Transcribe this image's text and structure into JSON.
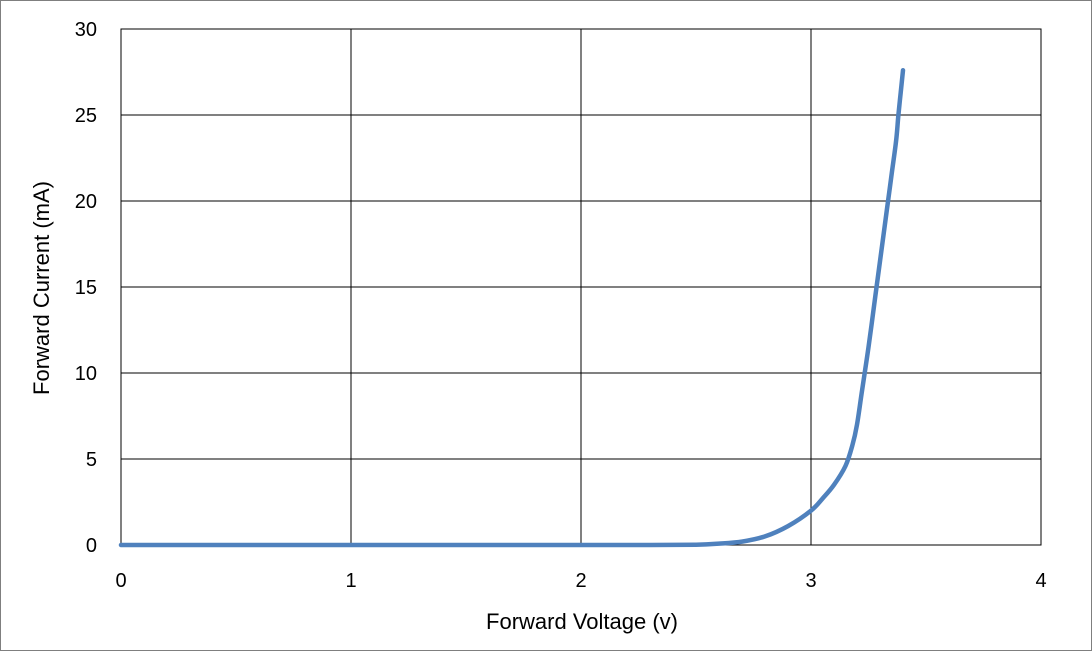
{
  "chart_data": {
    "type": "line",
    "title": "",
    "xlabel": "Forward Voltage (v)",
    "ylabel": "Forward Current (mA)",
    "xlim": [
      0,
      4
    ],
    "ylim": [
      0,
      30
    ],
    "x_ticks": [
      0,
      1,
      2,
      3,
      4
    ],
    "y_ticks": [
      0,
      5,
      10,
      15,
      20,
      25,
      30
    ],
    "grid": true,
    "legend": "none",
    "series": [
      {
        "color": "#4f81bd",
        "x": [
          0,
          0.5,
          1.0,
          1.5,
          2.0,
          2.3,
          2.5,
          2.6,
          2.7,
          2.8,
          2.9,
          3.0,
          3.05,
          3.1,
          3.15,
          3.18,
          3.2,
          3.22,
          3.25,
          3.28,
          3.3,
          3.33,
          3.35,
          3.37,
          3.38,
          3.39,
          3.4
        ],
        "y": [
          0,
          0,
          0,
          0,
          0,
          0,
          0.02,
          0.08,
          0.2,
          0.5,
          1.1,
          2.0,
          2.7,
          3.5,
          4.6,
          5.8,
          7.0,
          8.8,
          11.5,
          14.5,
          16.5,
          19.5,
          21.5,
          23.5,
          25.0,
          26.3,
          27.6
        ]
      }
    ]
  }
}
